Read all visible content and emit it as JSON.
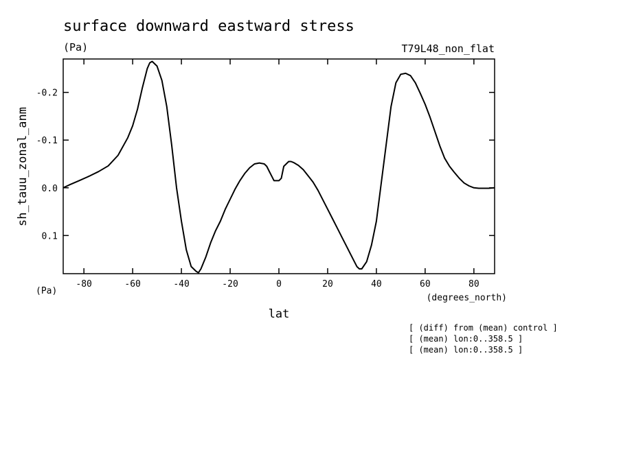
{
  "chart_data": {
    "type": "line",
    "title": "surface downward eastward stress",
    "units_label": "(Pa)",
    "run_label": "T79L48_non_flat",
    "ylabel": "sh_tauu_zonal_anm",
    "y_units": "(Pa)",
    "xlabel": "lat",
    "x_units": "(degrees_north)",
    "xlim": [
      -88.5,
      88.5
    ],
    "ylim": [
      0.18,
      -0.27
    ],
    "y_inverted": true,
    "x_ticks": [
      -80,
      -60,
      -40,
      -20,
      0,
      20,
      40,
      60,
      80
    ],
    "y_ticks": [
      -0.2,
      -0.1,
      0.0,
      0.1
    ],
    "y_tick_labels": [
      "-0.2",
      "-0.1",
      "0.0",
      "0.1"
    ],
    "grid": false,
    "notes": [
      "[ (diff) from (mean) control ]",
      "[ (mean) lon:0..358.5 ]",
      "[ (mean) lon:0..358.5 ]"
    ],
    "series": [
      {
        "x": [
          -88.5,
          -86,
          -82,
          -78,
          -74,
          -70,
          -66,
          -62,
          -60,
          -58,
          -56,
          -54,
          -53,
          -52,
          -50,
          -48,
          -46,
          -44,
          -42,
          -40,
          -38,
          -36,
          -34,
          -33,
          -32,
          -30,
          -28,
          -26,
          -24,
          -22,
          -20,
          -18,
          -16,
          -14,
          -12,
          -10,
          -8,
          -6,
          -5,
          -4,
          -2,
          -1,
          0,
          1,
          2,
          4,
          5,
          6,
          8,
          10,
          12,
          14,
          16,
          18,
          20,
          22,
          24,
          26,
          28,
          30,
          32,
          33,
          34,
          36,
          38,
          40,
          42,
          44,
          46,
          48,
          50,
          52,
          54,
          56,
          58,
          60,
          62,
          64,
          66,
          68,
          70,
          72,
          74,
          76,
          78,
          80,
          82,
          84,
          86,
          88.5
        ],
        "y": [
          0.0,
          -0.006,
          -0.015,
          -0.024,
          -0.034,
          -0.046,
          -0.068,
          -0.105,
          -0.13,
          -0.165,
          -0.21,
          -0.25,
          -0.262,
          -0.265,
          -0.255,
          -0.225,
          -0.17,
          -0.09,
          0.0,
          0.07,
          0.13,
          0.165,
          0.175,
          0.178,
          0.17,
          0.145,
          0.115,
          0.09,
          0.07,
          0.045,
          0.024,
          0.003,
          -0.015,
          -0.03,
          -0.042,
          -0.05,
          -0.052,
          -0.05,
          -0.045,
          -0.035,
          -0.015,
          -0.015,
          -0.015,
          -0.02,
          -0.045,
          -0.055,
          -0.055,
          -0.053,
          -0.047,
          -0.038,
          -0.025,
          -0.012,
          0.005,
          0.025,
          0.045,
          0.065,
          0.085,
          0.105,
          0.125,
          0.145,
          0.165,
          0.17,
          0.17,
          0.155,
          0.12,
          0.07,
          -0.01,
          -0.09,
          -0.17,
          -0.22,
          -0.238,
          -0.24,
          -0.235,
          -0.22,
          -0.198,
          -0.175,
          -0.148,
          -0.118,
          -0.088,
          -0.062,
          -0.045,
          -0.032,
          -0.02,
          -0.01,
          -0.004,
          0.0,
          0.001,
          0.001,
          0.001,
          0.0
        ]
      }
    ]
  }
}
